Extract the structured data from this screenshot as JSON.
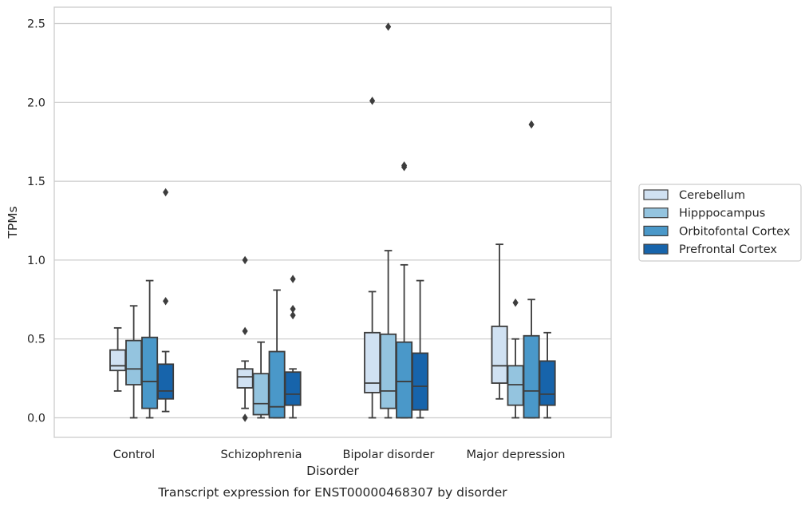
{
  "chart_data": {
    "type": "boxplot",
    "caption": "Transcript expression for ENST00000468307 by disorder",
    "xlabel": "Disorder",
    "ylabel": "TPMs",
    "ylim": [
      -0.12,
      2.62
    ],
    "yticks": [
      "0.0",
      "0.5",
      "1.0",
      "1.5",
      "2.0",
      "2.5"
    ],
    "ytick_values": [
      0,
      0.5,
      1.0,
      1.5,
      2.0,
      2.5
    ],
    "grid": "horizontal",
    "legend_position": "right",
    "categories": [
      "Control",
      "Schizophrenia",
      "Bipolar disorder",
      "Major depression"
    ],
    "series": [
      {
        "name": "Cerebellum",
        "color": "#d0e1f2",
        "boxes": [
          {
            "whisker_low": 0.17,
            "q1": 0.3,
            "median": 0.33,
            "q3": 0.43,
            "whisker_high": 0.57,
            "outliers": []
          },
          {
            "whisker_low": 0.06,
            "q1": 0.19,
            "median": 0.26,
            "q3": 0.31,
            "whisker_high": 0.36,
            "outliers": [
              1.0,
              0.55,
              0.0
            ]
          },
          {
            "whisker_low": 0.0,
            "q1": 0.16,
            "median": 0.22,
            "q3": 0.54,
            "whisker_high": 0.8,
            "outliers": [
              2.01
            ]
          },
          {
            "whisker_low": 0.12,
            "q1": 0.22,
            "median": 0.33,
            "q3": 0.58,
            "whisker_high": 1.1,
            "outliers": []
          }
        ]
      },
      {
        "name": "Hipppocampus",
        "color": "#94c4df",
        "boxes": [
          {
            "whisker_low": 0.0,
            "q1": 0.21,
            "median": 0.31,
            "q3": 0.49,
            "whisker_high": 0.71,
            "outliers": []
          },
          {
            "whisker_low": 0.0,
            "q1": 0.02,
            "median": 0.09,
            "q3": 0.28,
            "whisker_high": 0.48,
            "outliers": []
          },
          {
            "whisker_low": 0.0,
            "q1": 0.06,
            "median": 0.17,
            "q3": 0.53,
            "whisker_high": 1.06,
            "outliers": [
              2.48
            ]
          },
          {
            "whisker_low": 0.0,
            "q1": 0.08,
            "median": 0.21,
            "q3": 0.33,
            "whisker_high": 0.5,
            "outliers": [
              0.73
            ]
          }
        ]
      },
      {
        "name": "Orbitofontal Cortex",
        "color": "#4a98c9",
        "boxes": [
          {
            "whisker_low": 0.0,
            "q1": 0.06,
            "median": 0.23,
            "q3": 0.51,
            "whisker_high": 0.87,
            "outliers": []
          },
          {
            "whisker_low": 0.0,
            "q1": 0.0,
            "median": 0.07,
            "q3": 0.42,
            "whisker_high": 0.81,
            "outliers": []
          },
          {
            "whisker_low": 0.0,
            "q1": 0.0,
            "median": 0.23,
            "q3": 0.48,
            "whisker_high": 0.97,
            "outliers": [
              1.59,
              1.6
            ]
          },
          {
            "whisker_low": 0.0,
            "q1": 0.0,
            "median": 0.17,
            "q3": 0.52,
            "whisker_high": 0.75,
            "outliers": [
              1.86
            ]
          }
        ]
      },
      {
        "name": "Prefrontal Cortex",
        "color": "#1764ab",
        "boxes": [
          {
            "whisker_low": 0.04,
            "q1": 0.12,
            "median": 0.17,
            "q3": 0.34,
            "whisker_high": 0.42,
            "outliers": [
              1.43,
              0.74
            ]
          },
          {
            "whisker_low": 0.0,
            "q1": 0.08,
            "median": 0.15,
            "q3": 0.29,
            "whisker_high": 0.31,
            "outliers": [
              0.88,
              0.69,
              0.65
            ]
          },
          {
            "whisker_low": 0.0,
            "q1": 0.05,
            "median": 0.2,
            "q3": 0.41,
            "whisker_high": 0.87,
            "outliers": []
          },
          {
            "whisker_low": 0.0,
            "q1": 0.08,
            "median": 0.15,
            "q3": 0.36,
            "whisker_high": 0.54,
            "outliers": []
          }
        ]
      }
    ]
  }
}
